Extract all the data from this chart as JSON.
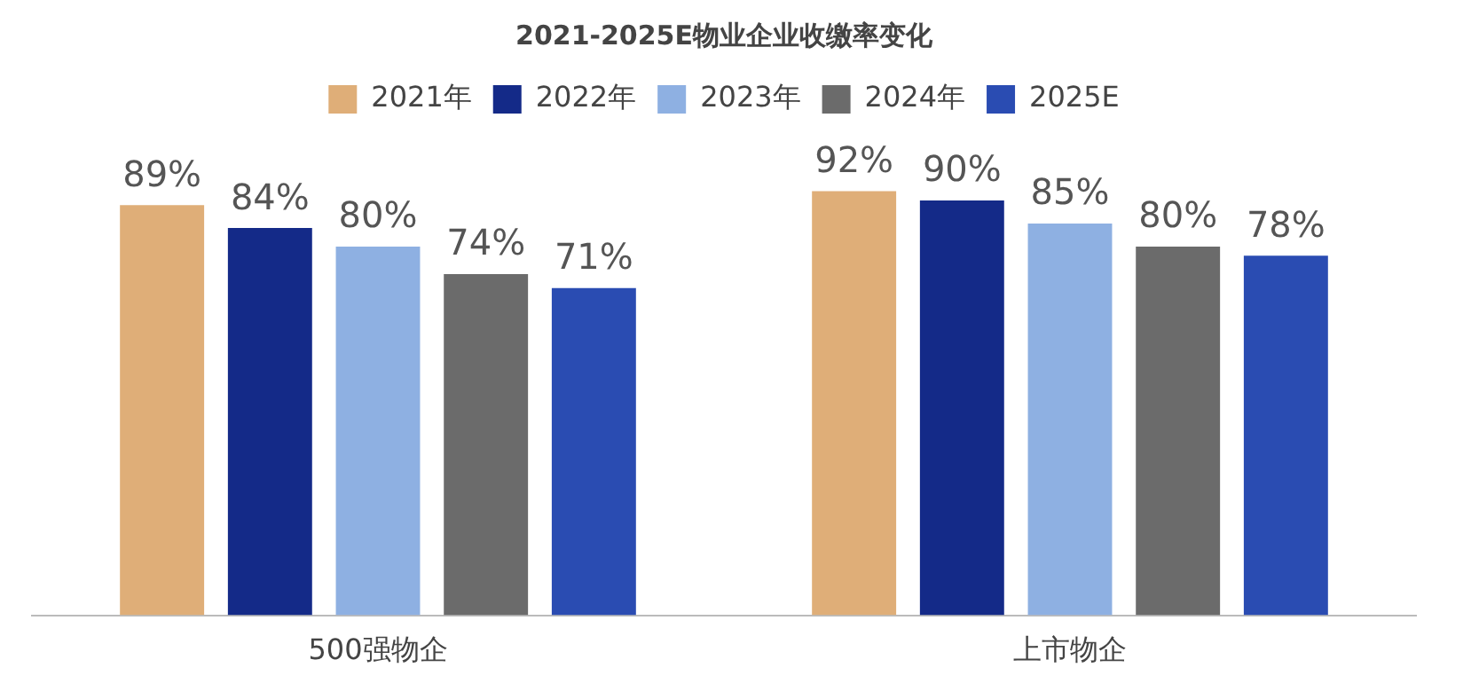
{
  "chart_data": {
    "type": "bar",
    "title": "2021-2025E物业企业收缴率变化",
    "categories": [
      "500强物企",
      "上市物企"
    ],
    "series": [
      {
        "name": "2021年",
        "color": "#dfae78",
        "values": [
          89,
          92
        ],
        "value_labels": [
          "89%",
          "92%"
        ]
      },
      {
        "name": "2022年",
        "color": "#142a88",
        "values": [
          84,
          90
        ],
        "value_labels": [
          "84%",
          "90%"
        ]
      },
      {
        "name": "2023年",
        "color": "#8eb0e2",
        "values": [
          80,
          85
        ],
        "value_labels": [
          "80%",
          "85%"
        ]
      },
      {
        "name": "2024年",
        "color": "#6b6b6b",
        "values": [
          74,
          80
        ],
        "value_labels": [
          "74%",
          "80%"
        ]
      },
      {
        "name": "2025E",
        "color": "#2a4cb2",
        "values": [
          71,
          78
        ],
        "value_labels": [
          "71%",
          "78%"
        ]
      }
    ],
    "legend": "top",
    "grid": false
  }
}
